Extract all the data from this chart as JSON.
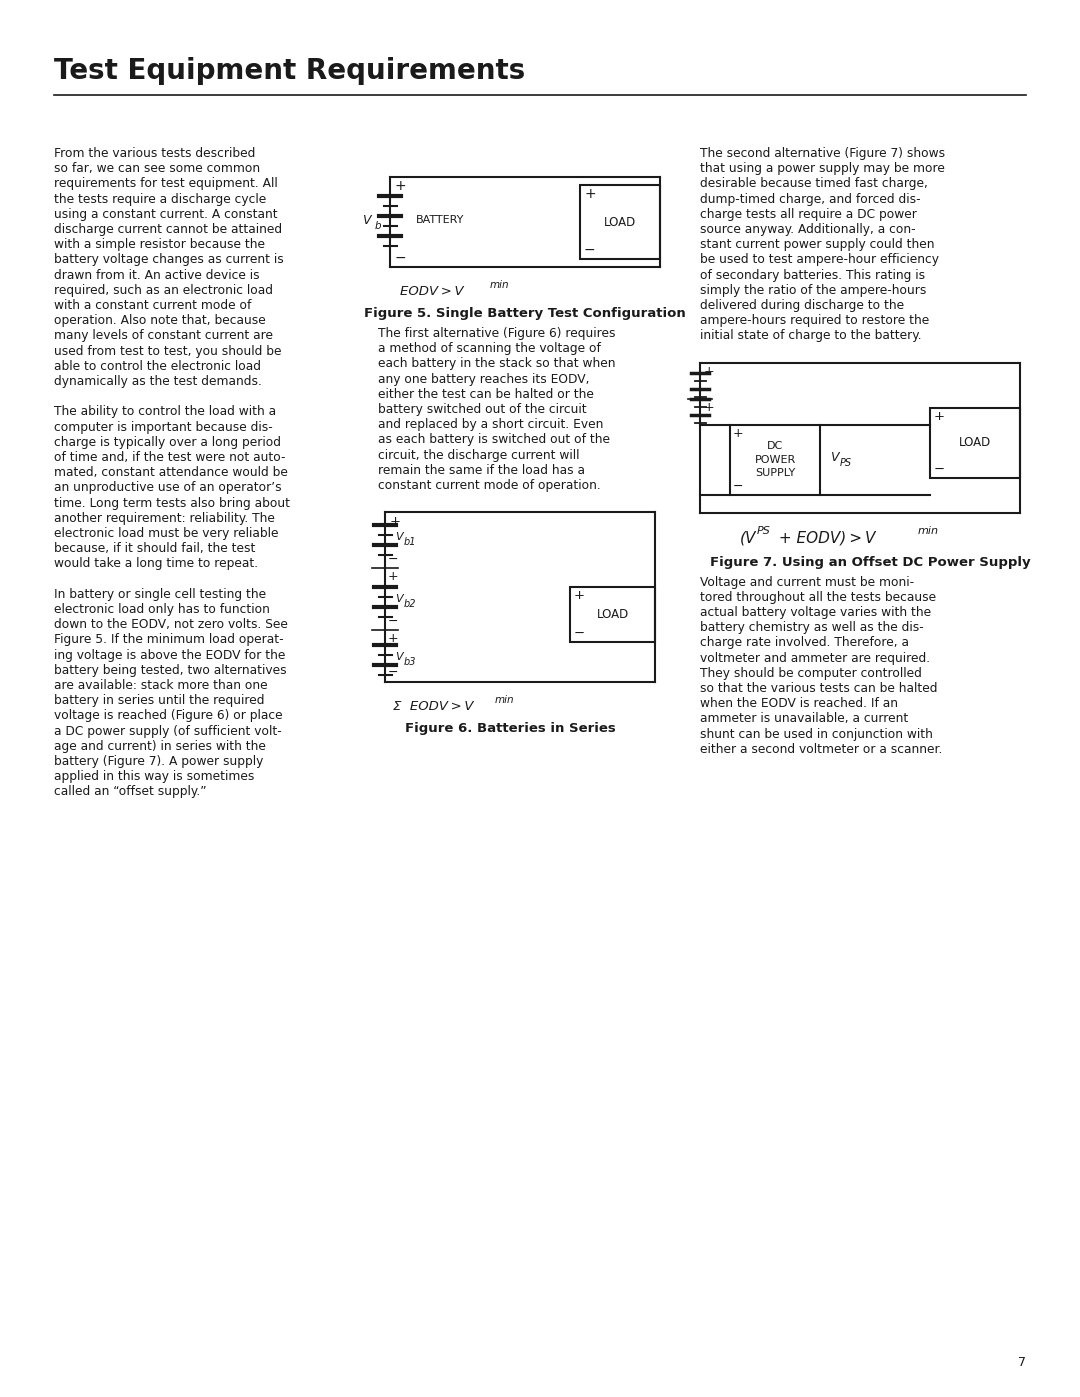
{
  "title": "Test Equipment Requirements",
  "background_color": "#ffffff",
  "text_color": "#1a1a1a",
  "page_number": "7",
  "left_column_text": [
    "From the various tests described",
    "so far, we can see some common",
    "requirements for test equipment. All",
    "the tests require a discharge cycle",
    "using a constant current. A constant",
    "discharge current cannot be attained",
    "with a simple resistor because the",
    "battery voltage changes as current is",
    "drawn from it. An active device is",
    "required, such as an electronic load",
    "with a constant current mode of",
    "operation. Also note that, because",
    "many levels of constant current are",
    "used from test to test, you should be",
    "able to control the electronic load",
    "dynamically as the test demands.",
    "",
    "The ability to control the load with a",
    "computer is important because dis-",
    "charge is typically over a long period",
    "of time and, if the test were not auto-",
    "mated, constant attendance would be",
    "an unproductive use of an operator’s",
    "time. Long term tests also bring about",
    "another requirement: reliability. The",
    "electronic load must be very reliable",
    "because, if it should fail, the test",
    "would take a long time to repeat.",
    "",
    "In battery or single cell testing the",
    "electronic load only has to function",
    "down to the EODV, not zero volts. See",
    "Figure 5. If the minimum load operat-",
    "ing voltage is above the EODV for the",
    "battery being tested, two alternatives",
    "are available: stack more than one",
    "battery in series until the required",
    "voltage is reached (Figure 6) or place",
    "a DC power supply (of sufficient volt-",
    "age and current) in series with the",
    "battery (Figure 7). A power supply",
    "applied in this way is sometimes",
    "called an “offset supply.”"
  ],
  "middle_column_text": [
    "The first alternative (Figure 6) requires",
    "a method of scanning the voltage of",
    "each battery in the stack so that when",
    "any one battery reaches its EODV,",
    "either the test can be halted or the",
    "battery switched out of the circuit",
    "and replaced by a short circuit. Even",
    "as each battery is switched out of the",
    "circuit, the discharge current will",
    "remain the same if the load has a",
    "constant current mode of operation."
  ],
  "right_column_text_top": [
    "The second alternative (Figure 7) shows",
    "that using a power supply may be more",
    "desirable because timed fast charge,",
    "dump-timed charge, and forced dis-",
    "charge tests all require a DC power",
    "source anyway. Additionally, a con-",
    "stant current power supply could then",
    "be used to test ampere-hour efficiency",
    "of secondary batteries. This rating is",
    "simply the ratio of the ampere-hours",
    "delivered during discharge to the",
    "ampere-hours required to restore the",
    "initial state of charge to the battery."
  ],
  "right_column_text_bottom": [
    "Voltage and current must be moni-",
    "tored throughout all the tests because",
    "actual battery voltage varies with the",
    "battery chemistry as well as the dis-",
    "charge rate involved. Therefore, a",
    "voltmeter and ammeter are required.",
    "They should be computer controlled",
    "so that the various tests can be halted",
    "when the EODV is reached. If an",
    "ammeter is unavailable, a current",
    "shunt can be used in conjunction with",
    "either a second voltmeter or a scanner."
  ],
  "fig5_caption": "Figure 5. Single Battery Test Configuration",
  "fig6_caption": "Figure 6. Batteries in Series",
  "fig7_caption": "Figure 7. Using an Offset DC Power Supply"
}
